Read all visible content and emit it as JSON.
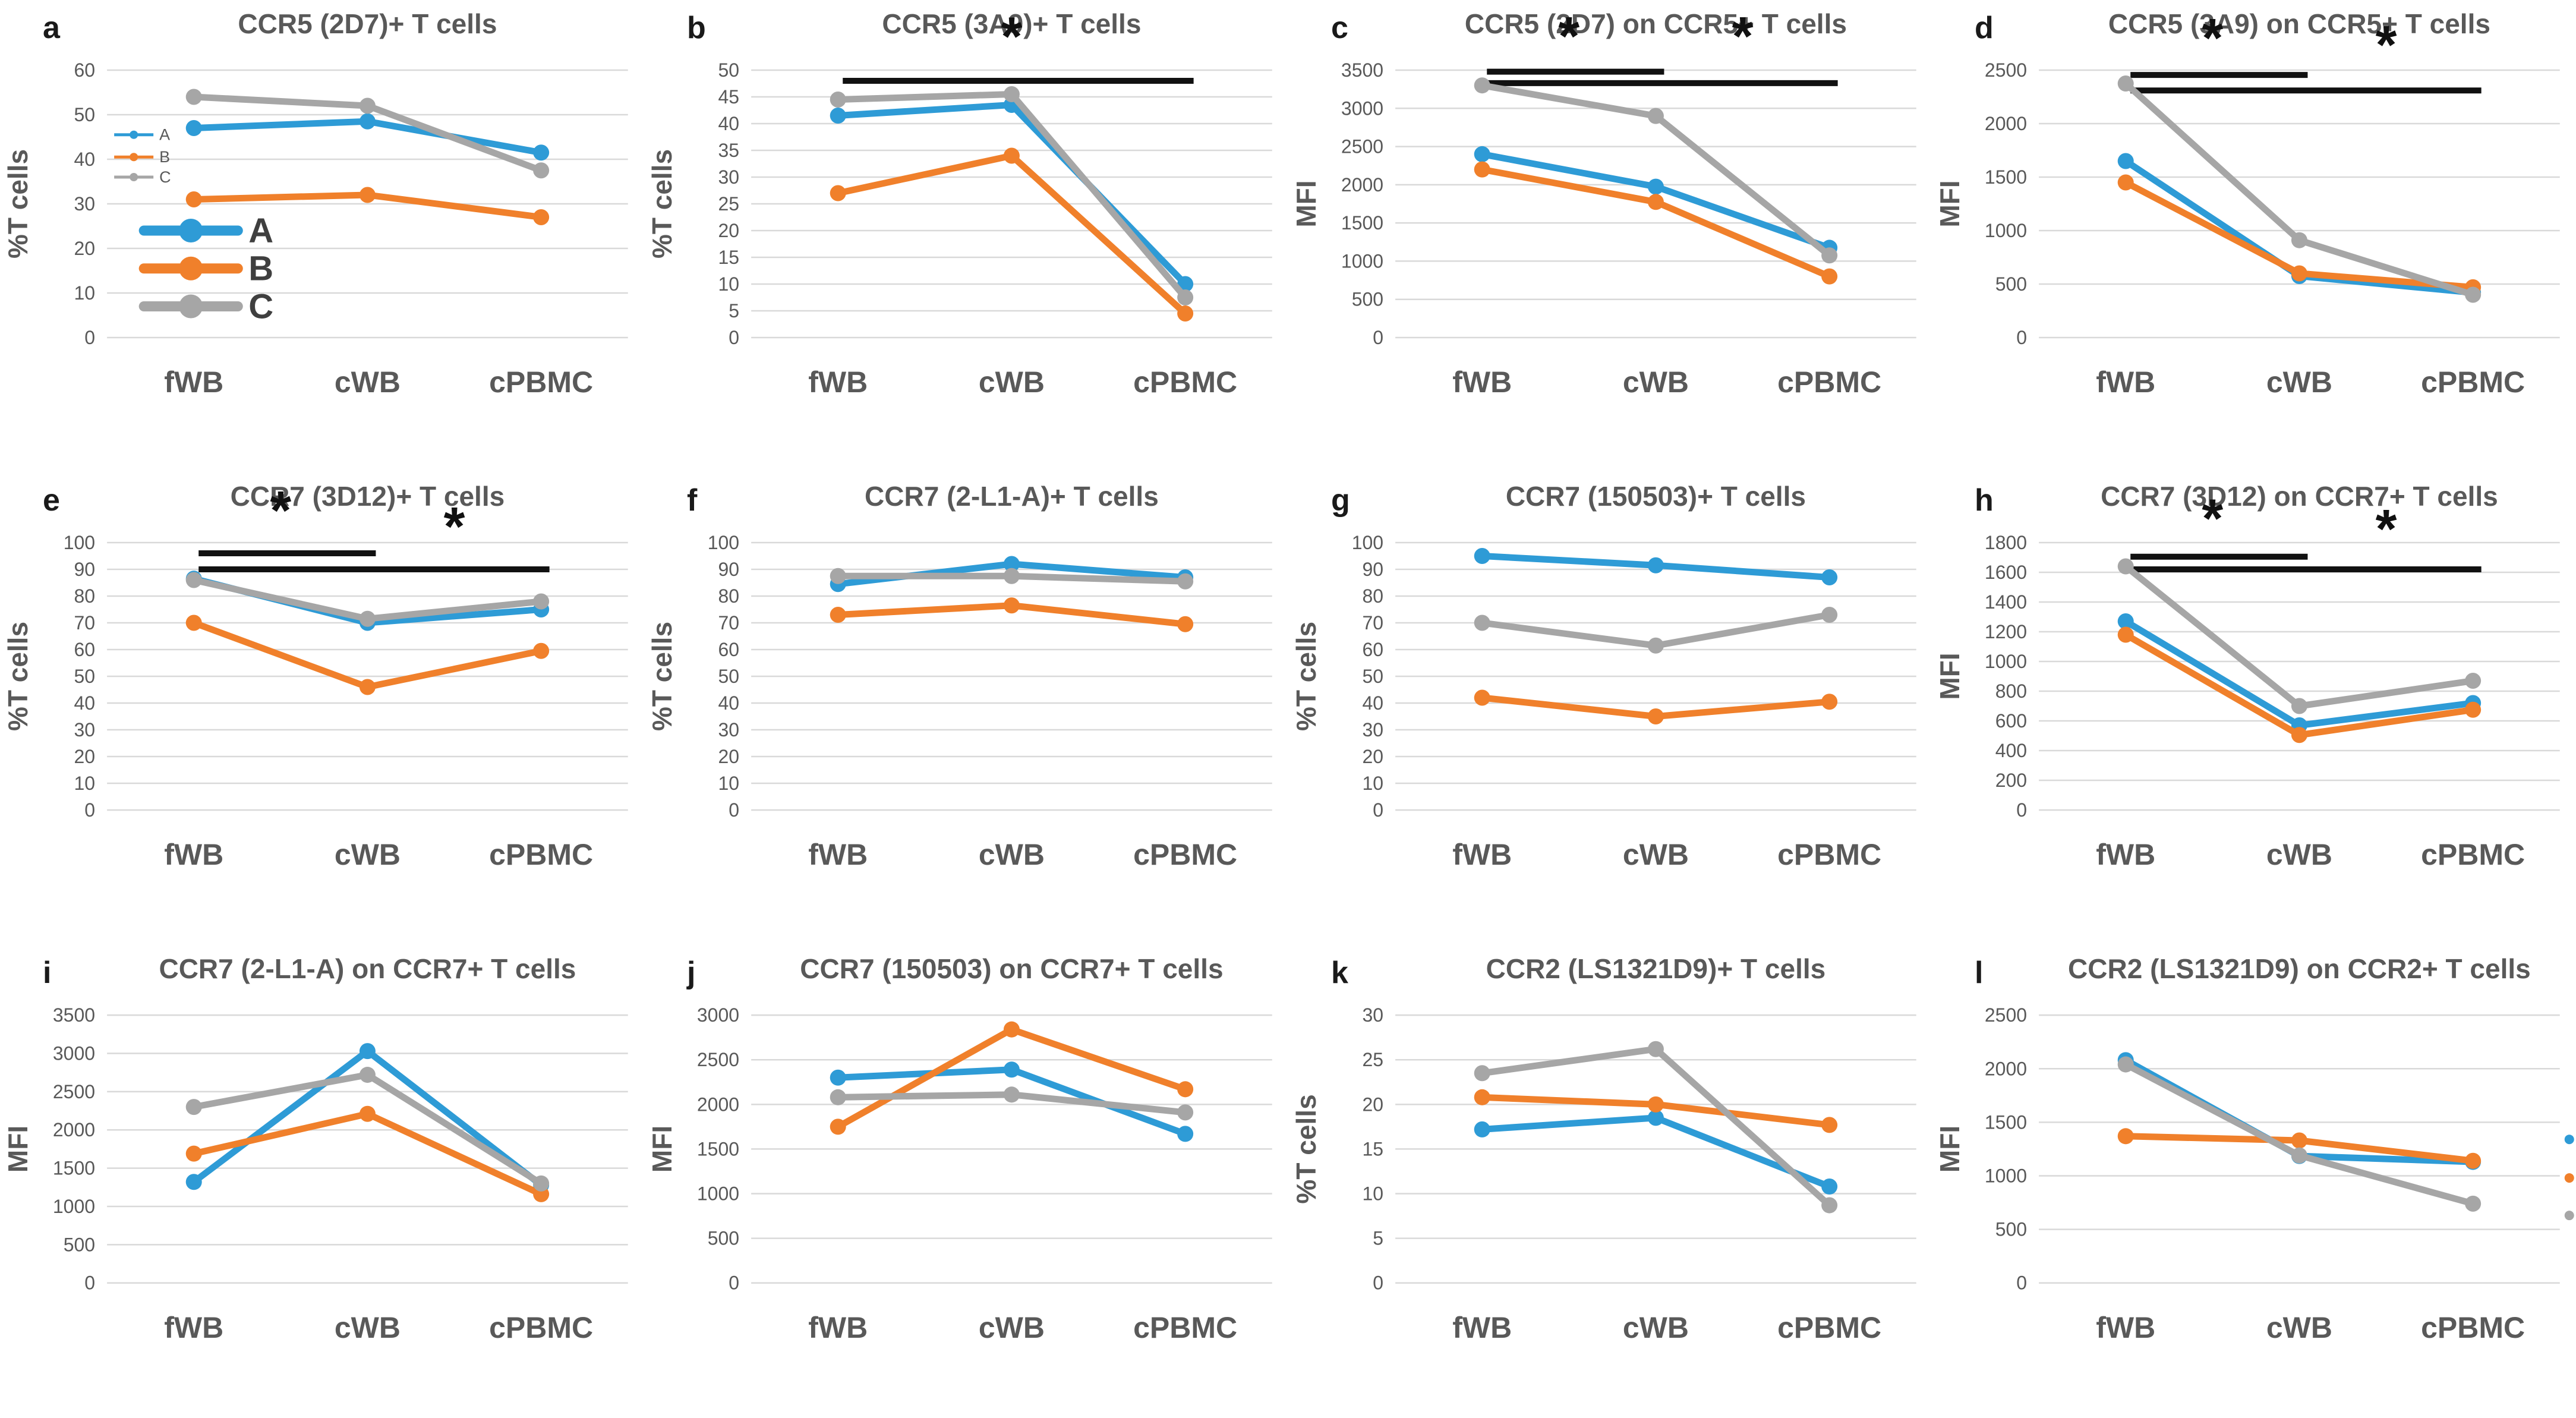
{
  "figure": {
    "categories": [
      "fWB",
      "cWB",
      "cPBMC"
    ],
    "series_legend": [
      {
        "name": "A",
        "color": "#2E9BD6"
      },
      {
        "name": "B",
        "color": "#F0802B"
      },
      {
        "name": "C",
        "color": "#A6A6A6"
      }
    ],
    "colors": {
      "A": "#2E9BD6",
      "B": "#F0802B",
      "C": "#A6A6A6",
      "grid": "#D9D9D9",
      "text": "#595959",
      "dark_text": "#3F3F3F",
      "star": "#111111"
    }
  },
  "chart_data": [
    {
      "type": "line",
      "letter": "a",
      "title": "CCR5 (2D7)+ T cells",
      "ylabel": "%T cells",
      "ymax": 60,
      "ystep": 10,
      "grid": true,
      "categories": [
        "fWB",
        "cWB",
        "cPBMC"
      ],
      "series": [
        {
          "name": "A",
          "values": [
            47,
            48.5,
            41.5
          ]
        },
        {
          "name": "B",
          "values": [
            31,
            32,
            27
          ]
        },
        {
          "name": "C",
          "values": [
            54,
            52,
            37.5
          ]
        }
      ],
      "legend_small": {
        "labels": [
          "A",
          "B",
          "C"
        ],
        "y": [
          45.5,
          40.5,
          36
        ]
      },
      "legend_large": {
        "labels": [
          "A",
          "B",
          "C"
        ],
        "y": [
          24,
          15.5,
          7
        ]
      }
    },
    {
      "type": "line",
      "letter": "b",
      "title": "CCR5 (3A9)+ T cells",
      "ylabel": "%T cells",
      "ymax": 50,
      "ystep": 5,
      "grid": true,
      "categories": [
        "fWB",
        "cWB",
        "cPBMC"
      ],
      "series": [
        {
          "name": "A",
          "values": [
            41.5,
            43.5,
            10
          ]
        },
        {
          "name": "B",
          "values": [
            27,
            34,
            4.5
          ]
        },
        {
          "name": "C",
          "values": [
            44.5,
            45.5,
            7.5
          ]
        }
      ],
      "sig_bars": [
        {
          "from": 0,
          "to": 2,
          "y": 48
        }
      ],
      "stars": [
        {
          "slot_a": 1,
          "slot_b": 1,
          "y": 52.8
        }
      ]
    },
    {
      "type": "line",
      "letter": "c",
      "title": "CCR5 (2D7) on CCR5+ T cells",
      "ylabel": "MFI",
      "ymax": 3500,
      "ystep": 500,
      "grid": true,
      "categories": [
        "fWB",
        "cWB",
        "cPBMC"
      ],
      "series": [
        {
          "name": "A",
          "values": [
            2400,
            1975,
            1175
          ]
        },
        {
          "name": "B",
          "values": [
            2200,
            1775,
            800
          ]
        },
        {
          "name": "C",
          "values": [
            3300,
            2900,
            1075
          ]
        }
      ],
      "sig_bars": [
        {
          "from": 0,
          "to": 1,
          "y": 3480
        },
        {
          "from": 0,
          "to": 2,
          "y": 3330
        }
      ],
      "stars": [
        {
          "slot_a": 0,
          "slot_b": 1,
          "y": 3700
        },
        {
          "slot_a": 1,
          "slot_b": 2,
          "y": 3700
        }
      ]
    },
    {
      "type": "line",
      "letter": "d",
      "title": "CCR5 (3A9) on CCR5+ T cells",
      "ylabel": "MFI",
      "ymax": 2500,
      "ystep": 500,
      "grid": true,
      "categories": [
        "fWB",
        "cWB",
        "cPBMC"
      ],
      "series": [
        {
          "name": "A",
          "values": [
            1650,
            575,
            420
          ]
        },
        {
          "name": "B",
          "values": [
            1450,
            600,
            470
          ]
        },
        {
          "name": "C",
          "values": [
            2375,
            910,
            400
          ]
        }
      ],
      "sig_bars": [
        {
          "from": 0,
          "to": 1,
          "y": 2455
        },
        {
          "from": 0,
          "to": 2,
          "y": 2310
        }
      ],
      "stars": [
        {
          "slot_a": 0,
          "slot_b": 1,
          "y": 2625
        },
        {
          "slot_a": 1,
          "slot_b": 2,
          "y": 2560
        }
      ]
    },
    {
      "type": "line",
      "letter": "e",
      "title": "CCR7 (3D12)+ T cells",
      "ylabel": "%T cells",
      "ymax": 100,
      "ystep": 10,
      "grid": true,
      "categories": [
        "fWB",
        "cWB",
        "cPBMC"
      ],
      "series": [
        {
          "name": "A",
          "values": [
            86.5,
            70,
            75
          ]
        },
        {
          "name": "B",
          "values": [
            70,
            46,
            59.5
          ]
        },
        {
          "name": "C",
          "values": [
            86,
            71.5,
            78
          ]
        }
      ],
      "sig_bars": [
        {
          "from": 0,
          "to": 1,
          "y": 96
        },
        {
          "from": 0,
          "to": 2,
          "y": 90
        }
      ],
      "stars": [
        {
          "slot_a": 0,
          "slot_b": 1,
          "y": 105
        },
        {
          "slot_a": 1,
          "slot_b": 2,
          "y": 99
        }
      ]
    },
    {
      "type": "line",
      "letter": "f",
      "title": "CCR7 (2-L1-A)+ T cells",
      "ylabel": "%T cells",
      "ymax": 100,
      "ystep": 10,
      "grid": true,
      "categories": [
        "fWB",
        "cWB",
        "cPBMC"
      ],
      "series": [
        {
          "name": "A",
          "values": [
            84.5,
            92,
            87
          ]
        },
        {
          "name": "B",
          "values": [
            73,
            76.5,
            69.5
          ]
        },
        {
          "name": "C",
          "values": [
            87.5,
            87.5,
            85.5
          ]
        }
      ]
    },
    {
      "type": "line",
      "letter": "g",
      "title": "CCR7 (150503)+ T cells",
      "ylabel": "%T cells",
      "ymax": 100,
      "ystep": 10,
      "grid": true,
      "categories": [
        "fWB",
        "cWB",
        "cPBMC"
      ],
      "series": [
        {
          "name": "A",
          "values": [
            95,
            91.5,
            87
          ]
        },
        {
          "name": "B",
          "values": [
            42,
            35,
            40.5
          ]
        },
        {
          "name": "C",
          "values": [
            70,
            61.5,
            73
          ]
        }
      ]
    },
    {
      "type": "line",
      "letter": "h",
      "title": "CCR7 (3D12) on CCR7+ T cells",
      "ylabel": "MFI",
      "ymax": 1800,
      "ystep": 200,
      "grid": true,
      "categories": [
        "fWB",
        "cWB",
        "cPBMC"
      ],
      "series": [
        {
          "name": "A",
          "values": [
            1270,
            570,
            720
          ]
        },
        {
          "name": "B",
          "values": [
            1180,
            505,
            675
          ]
        },
        {
          "name": "C",
          "values": [
            1640,
            700,
            870
          ]
        }
      ],
      "sig_bars": [
        {
          "from": 0,
          "to": 1,
          "y": 1705
        },
        {
          "from": 0,
          "to": 2,
          "y": 1620
        }
      ],
      "stars": [
        {
          "slot_a": 0,
          "slot_b": 1,
          "y": 1835
        },
        {
          "slot_a": 1,
          "slot_b": 2,
          "y": 1765
        }
      ]
    },
    {
      "type": "line",
      "letter": "i",
      "title": "CCR7 (2-L1-A) on CCR7+ T cells",
      "ylabel": "MFI",
      "ymax": 3500,
      "ystep": 500,
      "grid": true,
      "categories": [
        "fWB",
        "cWB",
        "cPBMC"
      ],
      "series": [
        {
          "name": "A",
          "values": [
            1320,
            3030,
            1280
          ]
        },
        {
          "name": "B",
          "values": [
            1690,
            2210,
            1160
          ]
        },
        {
          "name": "C",
          "values": [
            2300,
            2720,
            1300
          ]
        }
      ]
    },
    {
      "type": "line",
      "letter": "j",
      "title": "CCR7 (150503) on CCR7+ T cells",
      "ylabel": "MFI",
      "ymax": 3000,
      "ystep": 500,
      "grid": true,
      "categories": [
        "fWB",
        "cWB",
        "cPBMC"
      ],
      "series": [
        {
          "name": "A",
          "values": [
            2300,
            2390,
            1670
          ]
        },
        {
          "name": "B",
          "values": [
            1750,
            2840,
            2170
          ]
        },
        {
          "name": "C",
          "values": [
            2080,
            2110,
            1910
          ]
        }
      ]
    },
    {
      "type": "line",
      "letter": "k",
      "title": "CCR2 (LS1321D9)+ T cells",
      "ylabel": "%T cells",
      "ymax": 30,
      "ystep": 5,
      "grid": true,
      "categories": [
        "fWB",
        "cWB",
        "cPBMC"
      ],
      "series": [
        {
          "name": "A",
          "values": [
            17.2,
            18.5,
            10.8
          ]
        },
        {
          "name": "B",
          "values": [
            20.8,
            20,
            17.7
          ]
        },
        {
          "name": "C",
          "values": [
            23.5,
            26.2,
            8.7
          ]
        }
      ]
    },
    {
      "type": "line",
      "letter": "l",
      "title": "CCR2 (LS1321D9) on CCR2+ T cells",
      "ylabel": "MFI",
      "ymax": 2500,
      "ystep": 500,
      "grid": true,
      "categories": [
        "fWB",
        "cWB",
        "cPBMC"
      ],
      "series": [
        {
          "name": "A",
          "values": [
            2080,
            1185,
            1130
          ]
        },
        {
          "name": "B",
          "values": [
            1370,
            1330,
            1140
          ]
        },
        {
          "name": "C",
          "values": [
            2040,
            1190,
            740
          ]
        }
      ],
      "edge_legend": {
        "y": [
          1340,
          980,
          630
        ]
      }
    }
  ]
}
